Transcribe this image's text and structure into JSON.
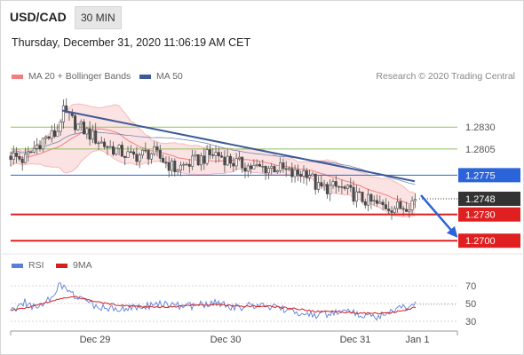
{
  "header": {
    "symbol": "USD/CAD",
    "timeframe": "30 MIN",
    "timestamp": "Thursday, December 31, 2020 11:06:19 AM CET",
    "copyright": "Research © 2020 Trading Central"
  },
  "colors": {
    "bollinger": "#f08080",
    "bollinger_band_fill": "#fbe3e3",
    "ma50": "#3d5a98",
    "resistance_green": "#8fc25f",
    "pivot_blue": "#2b63d9",
    "support_red": "#e02020",
    "current_price": "#333333",
    "trendline": "#3d5a98",
    "arrow": "#2b63d9",
    "rsi": "#5b7fdb",
    "rsi_ma": "#d42020",
    "candle_up": "#ffffff",
    "candle_down": "#4a4a4a"
  },
  "chart_data": [
    {
      "type": "candlestick",
      "title": "",
      "legend": [
        {
          "name": "MA 20 + Bollinger Bands",
          "color": "#f08080"
        },
        {
          "name": "MA 50",
          "color": "#3d5a98"
        }
      ],
      "legend_position": "top-left",
      "ylim": [
        1.2687,
        1.2879
      ],
      "x_ticks": [
        "Dec 29",
        "Dec 30",
        "Dec 31",
        "Jan 1"
      ],
      "levels": [
        {
          "value": 1.283,
          "label": "1.2830",
          "style": "green-line"
        },
        {
          "value": 1.2805,
          "label": "1.2805",
          "style": "green-line"
        },
        {
          "value": 1.2775,
          "label": "1.2775",
          "style": "blue-box"
        },
        {
          "value": 1.2748,
          "label": "1.2748",
          "style": "current-price"
        },
        {
          "value": 1.273,
          "label": "1.2730",
          "style": "red-box"
        },
        {
          "value": 1.27,
          "label": "1.2700",
          "style": "red-box"
        }
      ],
      "trendline": {
        "x": [
          58,
          455
        ],
        "y": [
          1.2849,
          1.2768
        ]
      },
      "forecast_arrow": {
        "from": {
          "x": 462,
          "y": 1.2752
        },
        "to": {
          "x": 502,
          "y": 1.2705
        }
      },
      "close_price_anchors": [
        {
          "x": 0,
          "y": 1.2798
        },
        {
          "x": 15,
          "y": 1.2792
        },
        {
          "x": 35,
          "y": 1.2815
        },
        {
          "x": 52,
          "y": 1.2823
        },
        {
          "x": 58,
          "y": 1.2848
        },
        {
          "x": 75,
          "y": 1.2832
        },
        {
          "x": 105,
          "y": 1.281
        },
        {
          "x": 135,
          "y": 1.2796
        },
        {
          "x": 160,
          "y": 1.2801
        },
        {
          "x": 185,
          "y": 1.2782
        },
        {
          "x": 205,
          "y": 1.279
        },
        {
          "x": 230,
          "y": 1.28
        },
        {
          "x": 250,
          "y": 1.279
        },
        {
          "x": 275,
          "y": 1.2783
        },
        {
          "x": 300,
          "y": 1.2784
        },
        {
          "x": 318,
          "y": 1.2775
        },
        {
          "x": 335,
          "y": 1.278
        },
        {
          "x": 345,
          "y": 1.276
        },
        {
          "x": 370,
          "y": 1.2761
        },
        {
          "x": 395,
          "y": 1.2748
        },
        {
          "x": 415,
          "y": 1.274
        },
        {
          "x": 440,
          "y": 1.2738
        },
        {
          "x": 452,
          "y": 1.2745
        },
        {
          "x": 457,
          "y": 1.2748
        }
      ]
    },
    {
      "type": "line",
      "title": "",
      "legend": [
        {
          "name": "RSI",
          "color": "#5b7fdb"
        },
        {
          "name": "9MA",
          "color": "#d42020"
        }
      ],
      "ylim": [
        20,
        82
      ],
      "y_ticks": [
        30,
        50,
        70
      ],
      "series": [
        {
          "name": "RSI",
          "x": [
            0,
            15,
            25,
            45,
            55,
            60,
            75,
            100,
            135,
            170,
            205,
            230,
            250,
            270,
            300,
            320,
            345,
            370,
            395,
            410,
            430,
            445,
            457
          ],
          "values": [
            41,
            52,
            47,
            55,
            72,
            68,
            56,
            46,
            45,
            49,
            47,
            52,
            45,
            48,
            46,
            40,
            36,
            42,
            38,
            35,
            40,
            46,
            49
          ]
        },
        {
          "name": "9MA",
          "x": [
            0,
            25,
            50,
            70,
            100,
            135,
            170,
            205,
            235,
            260,
            290,
            320,
            345,
            370,
            400,
            425,
            445,
            457
          ],
          "values": [
            42,
            47,
            54,
            58,
            51,
            47,
            46,
            48,
            49,
            47,
            47,
            44,
            41,
            41,
            39,
            39,
            43,
            46
          ]
        }
      ]
    }
  ]
}
